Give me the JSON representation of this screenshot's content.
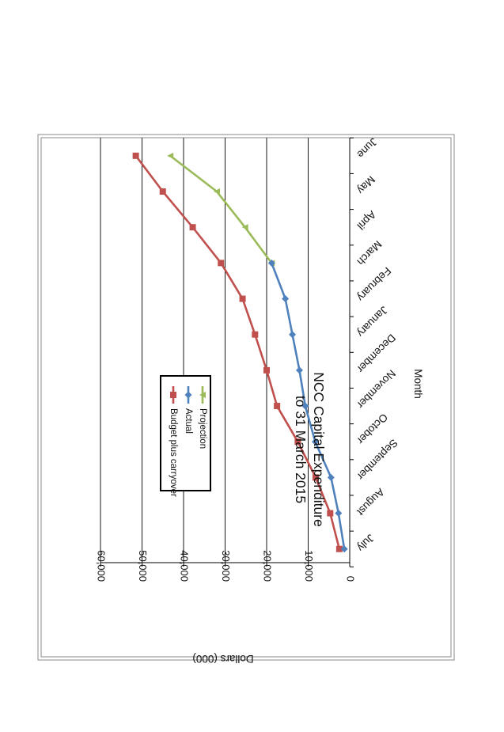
{
  "chart_data": {
    "type": "line",
    "title": "NCC Capital Expenditure",
    "subtitle": "to 31 March 2015",
    "xlabel": "Month",
    "ylabel": "Dollars (000)",
    "categories": [
      "July",
      "August",
      "September",
      "October",
      "November",
      "December",
      "January",
      "February",
      "March",
      "April",
      "May",
      "June"
    ],
    "ylim": [
      0,
      60000
    ],
    "yticks": [
      0,
      10000,
      20000,
      30000,
      40000,
      50000,
      60000
    ],
    "ytick_labels": [
      "0",
      "10,000",
      "20,000",
      "30,000",
      "40,000",
      "50,000",
      "60,000"
    ],
    "grid": true,
    "legend_position": "left",
    "orientation": "rotated-180",
    "series": [
      {
        "name": "Budget plus carryover",
        "color": "#c0504d",
        "marker": "square",
        "values": [
          2500,
          4700,
          8200,
          12500,
          17500,
          20000,
          22800,
          25800,
          31000,
          37800,
          45000,
          51500
        ]
      },
      {
        "name": "Actual",
        "color": "#4f81bd",
        "marker": "diamond",
        "values": [
          1300,
          2700,
          4500,
          8300,
          10700,
          12100,
          13800,
          15500,
          18800,
          null,
          null,
          null
        ]
      },
      {
        "name": "Projection",
        "color": "#9bbb59",
        "marker": "triangle",
        "values": [
          null,
          null,
          null,
          null,
          null,
          null,
          null,
          null,
          18800,
          25200,
          32000,
          43200
        ]
      }
    ]
  }
}
